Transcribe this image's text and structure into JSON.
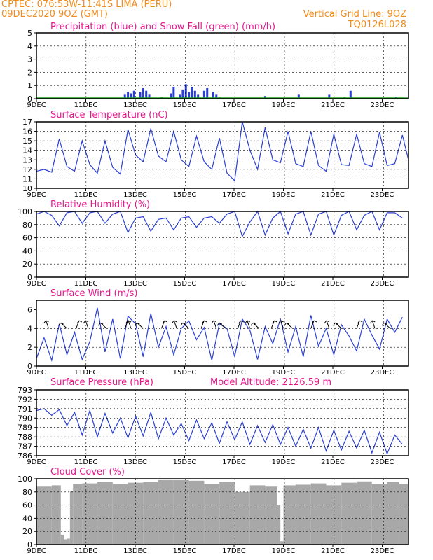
{
  "header": {
    "line1": "CPTEC:   076:53W-11:41S   LIMA (PERU)",
    "line2": "09DEC2020 9OZ (GMT)",
    "grid_note": "Vertical Grid Line: 9OZ",
    "code": "TQ0126L028"
  },
  "x_labels": [
    "9DEC",
    "11DEC",
    "13DEC",
    "15DEC",
    "17DEC",
    "19DEC",
    "21DEC",
    "23DEC"
  ],
  "model_altitude": "Model Altitude: 2126.59  m",
  "colors": {
    "header": "#f08c1e",
    "title": "#e8148c",
    "series": "#2a3fd6",
    "snow": "#1a9a1a",
    "cloud": "#a8a8a8"
  },
  "chart_data": [
    {
      "type": "bar",
      "title": "Precipitation (blue) and Snow Fall (green) (mm/h)",
      "ylim": [
        0,
        5
      ],
      "yticks": [
        "0",
        "1",
        "2",
        "3",
        "4",
        "5"
      ],
      "x_days": [
        0,
        1.8,
        2.9,
        3.0,
        3.1,
        3.2,
        3.4,
        3.5,
        3.6,
        3.7,
        4.1,
        4.4,
        4.5,
        4.7,
        4.8,
        4.9,
        5.0,
        5.1,
        5.2,
        5.3,
        5.5,
        5.6,
        5.8,
        5.9,
        6.0,
        6.1,
        6.3,
        7.0,
        7.5,
        8.1,
        8.6,
        9.3,
        9.6,
        10.1,
        10.3,
        11.8
      ],
      "values": [
        0,
        0.05,
        0.3,
        0.5,
        0.4,
        0.6,
        0.5,
        0.8,
        0.6,
        0.3,
        0.1,
        0.4,
        0.9,
        0.3,
        0.7,
        1.1,
        0.5,
        0.9,
        0.6,
        0.3,
        0.6,
        0.8,
        0.5,
        0.3,
        0.1,
        0.05,
        0.05,
        0.05,
        0.2,
        0.05,
        0.3,
        0.05,
        0.3,
        0.1,
        0.6,
        0.15
      ],
      "snow": 0
    },
    {
      "type": "line",
      "title": "Surface Temperature (nC)",
      "ylim": [
        10,
        17
      ],
      "yticks": [
        "10",
        "11",
        "12",
        "13",
        "14",
        "15",
        "16",
        "17"
      ],
      "x_days": [
        0,
        0.25,
        0.5,
        0.75,
        1.0,
        1.25,
        1.5,
        1.75,
        2.0,
        2.25,
        2.5,
        2.75,
        3.0,
        3.25,
        3.5,
        3.75,
        4.0,
        4.25,
        4.5,
        4.75,
        5.0,
        5.25,
        5.5,
        5.75,
        6.0,
        6.25,
        6.5,
        6.75,
        7.0,
        7.25,
        7.5,
        7.75,
        8.0,
        8.25,
        8.5,
        8.75,
        9.0,
        9.25,
        9.5,
        9.75,
        10.0,
        10.25,
        10.5,
        10.75,
        11.0,
        11.25,
        11.5,
        11.75,
        12.0
      ],
      "values": [
        11.8,
        12.0,
        11.7,
        15.2,
        12.3,
        11.8,
        15.0,
        12.5,
        11.6,
        15.0,
        12.2,
        11.5,
        16.2,
        13.5,
        12.8,
        16.3,
        13.4,
        12.8,
        16.0,
        13.0,
        12.3,
        15.5,
        12.8,
        12.0,
        15.3,
        11.6,
        10.8,
        17.0,
        14.0,
        12.0,
        16.4,
        13.0,
        12.7,
        16.0,
        12.6,
        12.3,
        16.0,
        12.4,
        11.8,
        15.7,
        12.5,
        12.4,
        15.7,
        12.6,
        12.3,
        15.9,
        12.4,
        12.6,
        15.6
      ],
      "line_end": 13.0
    },
    {
      "type": "line",
      "title": "Relative Humidity (%)",
      "ylim": [
        0,
        100
      ],
      "yticks": [
        "0",
        "20",
        "40",
        "60",
        "80",
        "100"
      ],
      "x_days": [
        0,
        0.25,
        0.5,
        0.75,
        1.0,
        1.25,
        1.5,
        1.75,
        2.0,
        2.25,
        2.5,
        2.75,
        3.0,
        3.25,
        3.5,
        3.75,
        4.0,
        4.25,
        4.5,
        4.75,
        5.0,
        5.25,
        5.5,
        5.75,
        6.0,
        6.25,
        6.5,
        6.75,
        7.0,
        7.25,
        7.5,
        7.75,
        8.0,
        8.25,
        8.5,
        8.75,
        9.0,
        9.25,
        9.5,
        9.75,
        10.0,
        10.25,
        10.5,
        10.75,
        11.0,
        11.25,
        11.5,
        11.75,
        12.0
      ],
      "values": [
        96,
        100,
        94,
        78,
        98,
        100,
        82,
        98,
        100,
        82,
        96,
        100,
        68,
        90,
        92,
        70,
        88,
        90,
        72,
        90,
        92,
        76,
        90,
        92,
        82,
        96,
        100,
        62,
        84,
        100,
        64,
        90,
        100,
        66,
        96,
        100,
        64,
        96,
        100,
        64,
        94,
        100,
        72,
        94,
        100,
        72,
        98,
        98,
        90
      ]
    },
    {
      "type": "line",
      "title": "Surface Wind (m/s)",
      "ylim": [
        0,
        7
      ],
      "yticks": [
        "0",
        "2",
        "4",
        "6"
      ],
      "x_days": [
        0,
        0.25,
        0.5,
        0.75,
        1.0,
        1.25,
        1.5,
        1.75,
        2.0,
        2.25,
        2.5,
        2.75,
        3.0,
        3.25,
        3.5,
        3.75,
        4.0,
        4.25,
        4.5,
        4.75,
        5.0,
        5.25,
        5.5,
        5.75,
        6.0,
        6.25,
        6.5,
        6.75,
        7.0,
        7.25,
        7.5,
        7.75,
        8.0,
        8.25,
        8.5,
        8.75,
        9.0,
        9.25,
        9.5,
        9.75,
        10.0,
        10.25,
        10.5,
        10.75,
        11.0,
        11.25,
        11.5,
        11.75,
        12.0
      ],
      "values": [
        0.8,
        3.0,
        0.6,
        4.5,
        1.2,
        3.6,
        0.7,
        2.6,
        6.2,
        1.5,
        5.0,
        0.8,
        5.3,
        4.5,
        1.0,
        5.6,
        2.0,
        4.2,
        1.2,
        4.0,
        4.8,
        2.8,
        4.1,
        0.6,
        4.5,
        4.0,
        1.0,
        5.0,
        3.8,
        0.7,
        4.2,
        2.4,
        5.0,
        1.5,
        4.2,
        1.0,
        5.4,
        2.1,
        4.0,
        1.2,
        4.4,
        3.2,
        1.6,
        5.0,
        3.3,
        1.8,
        5.0,
        3.6,
        5.2
      ],
      "arrows_x_days": [
        0.4,
        1.0,
        1.3,
        1.7,
        2.3,
        2.9,
        3.1,
        3.5,
        4.1,
        4.6,
        5.0,
        5.4,
        5.9,
        6.2,
        6.6,
        7.0,
        7.3,
        7.7,
        8.1,
        8.4,
        9.0,
        9.6,
        10.0,
        10.5,
        11.1,
        11.6
      ]
    },
    {
      "type": "line",
      "title": "Surface Pressure (hPa)",
      "ylim": [
        786,
        793
      ],
      "yticks": [
        "786",
        "787",
        "788",
        "789",
        "790",
        "791",
        "792",
        "793"
      ],
      "x_days": [
        0,
        0.25,
        0.5,
        0.75,
        1.0,
        1.25,
        1.5,
        1.75,
        2.0,
        2.25,
        2.5,
        2.75,
        3.0,
        3.25,
        3.5,
        3.75,
        4.0,
        4.25,
        4.5,
        4.75,
        5.0,
        5.25,
        5.5,
        5.75,
        6.0,
        6.25,
        6.5,
        6.75,
        7.0,
        7.25,
        7.5,
        7.75,
        8.0,
        8.25,
        8.5,
        8.75,
        9.0,
        9.25,
        9.5,
        9.75,
        10.0,
        10.25,
        10.5,
        10.75,
        11.0,
        11.25,
        11.5,
        11.75,
        12.0
      ],
      "values": [
        790.8,
        791.0,
        790.3,
        790.9,
        789.2,
        790.6,
        788.2,
        790.8,
        788.0,
        790.5,
        788.4,
        790.0,
        787.9,
        790.2,
        788.1,
        790.6,
        787.8,
        790.0,
        788.2,
        789.4,
        787.6,
        789.8,
        787.8,
        789.5,
        787.3,
        789.6,
        787.7,
        789.6,
        787.2,
        789.2,
        787.4,
        789.3,
        787.2,
        789.0,
        787.0,
        788.8,
        786.8,
        789.0,
        786.5,
        788.7,
        786.6,
        788.6,
        786.8,
        788.7,
        786.3,
        788.5,
        786.2,
        788.2,
        787.2
      ]
    },
    {
      "type": "bar",
      "title": "Cloud Cover (%)",
      "ylim": [
        0,
        100
      ],
      "yticks": [
        "0",
        "20",
        "40",
        "60",
        "80",
        "100"
      ],
      "x_days": [
        0,
        0.5,
        0.8,
        0.9,
        1.0,
        1.1,
        1.2,
        1.5,
        2.0,
        2.5,
        3.0,
        3.5,
        4.0,
        4.5,
        5.0,
        5.5,
        6.0,
        6.5,
        7.0,
        7.5,
        7.9,
        8.0,
        8.1,
        8.5,
        9.0,
        9.5,
        10.0,
        10.5,
        11.0,
        11.5,
        11.9
      ],
      "values": [
        88,
        90,
        15,
        8,
        9,
        82,
        92,
        93,
        95,
        92,
        94,
        95,
        98,
        98,
        97,
        92,
        95,
        80,
        90,
        88,
        60,
        5,
        90,
        91,
        93,
        90,
        94,
        96,
        92,
        95,
        92
      ]
    }
  ]
}
